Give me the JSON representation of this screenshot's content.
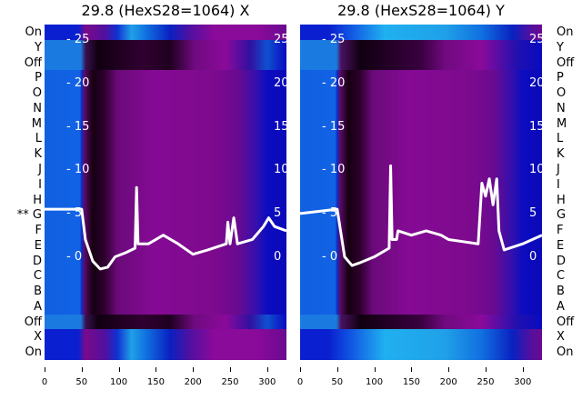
{
  "panels": [
    {
      "title": "29.8 (HexS28=1064) X"
    },
    {
      "title": "29.8 (HexS28=1064) Y"
    }
  ],
  "row_labels": [
    "On",
    "Y",
    "Off",
    "P",
    "O",
    "N",
    "M",
    "L",
    "K",
    "J",
    "I",
    "H",
    "G",
    "F",
    "E",
    "D",
    "C",
    "B",
    "A",
    "Off",
    "X",
    "On"
  ],
  "marker_prefix": "**",
  "chart_data": [
    {
      "type": "heatmap",
      "title": "29.8 (HexS28=1064) X",
      "xlim": [
        0,
        326
      ],
      "ylim": [
        -11.9,
        26.8
      ],
      "xticks": [
        0,
        50,
        100,
        150,
        200,
        250,
        300
      ],
      "yticks": [
        0,
        5,
        10,
        15,
        20,
        25
      ],
      "line": {
        "color": "#ffffff",
        "x": [
          0,
          50,
          55,
          65,
          75,
          85,
          95,
          110,
          122,
          124,
          126,
          140,
          160,
          180,
          200,
          220,
          245,
          247,
          250,
          255,
          260,
          280,
          295,
          302,
          310,
          326
        ],
        "y": [
          5.5,
          5.5,
          2,
          -0.5,
          -1.4,
          -1.2,
          0,
          0.5,
          1,
          8,
          1.5,
          1.5,
          2.5,
          1.5,
          0.3,
          0.8,
          1.5,
          4,
          1.5,
          4.5,
          1.5,
          2,
          3.5,
          4.5,
          3.5,
          3
        ]
      }
    },
    {
      "type": "heatmap",
      "title": "29.8 (HexS28=1064) Y",
      "xlim": [
        0,
        326
      ],
      "ylim": [
        -11.9,
        26.8
      ],
      "xticks": [
        0,
        50,
        100,
        150,
        200,
        250,
        300
      ],
      "yticks": [
        0,
        5,
        10,
        15,
        20,
        25
      ],
      "line": {
        "color": "#ffffff",
        "x": [
          0,
          50,
          60,
          70,
          80,
          100,
          120,
          122,
          124,
          130,
          132,
          150,
          170,
          190,
          200,
          240,
          245,
          250,
          255,
          260,
          265,
          268,
          275,
          300,
          326
        ],
        "y": [
          5,
          5.5,
          0,
          -1,
          -0.7,
          0,
          1,
          10.5,
          2,
          2,
          3,
          2.5,
          3,
          2.5,
          2,
          1.5,
          8.5,
          7,
          9,
          6,
          9,
          3,
          0.8,
          1.5,
          2.5
        ]
      }
    }
  ]
}
